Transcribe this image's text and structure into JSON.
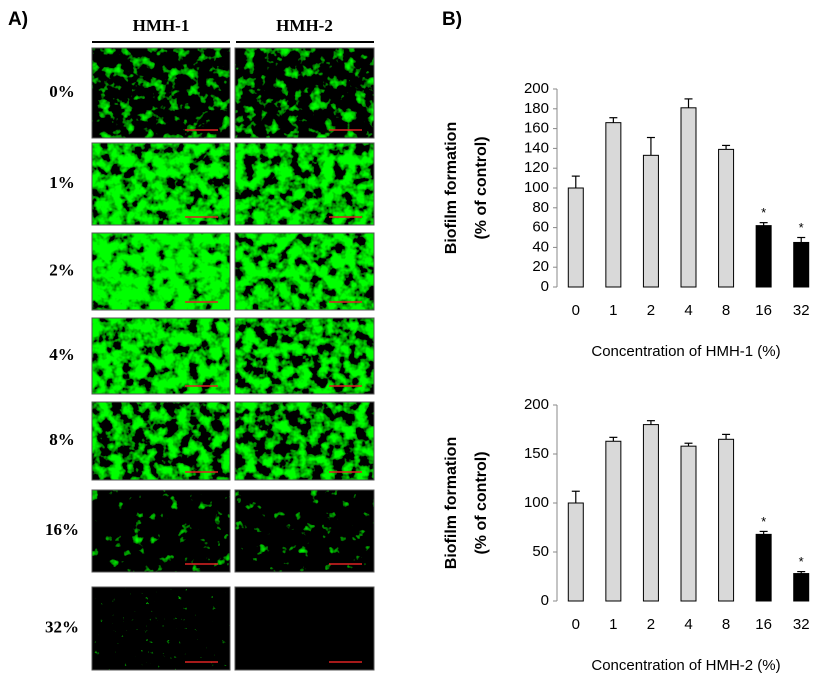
{
  "panel_a": {
    "label": "A)",
    "columns": [
      "HMH-1",
      "HMH-2"
    ],
    "rows": [
      "0%",
      "1%",
      "2%",
      "4%",
      "8%",
      "16%",
      "32%"
    ]
  },
  "panel_b": {
    "label": "B)"
  },
  "chart_data": [
    {
      "type": "bar",
      "ylabel": [
        "Biofilm formation",
        "(% of control)"
      ],
      "xlabel": "Concentration of HMH-1 (%)",
      "categories": [
        "0",
        "1",
        "2",
        "4",
        "8",
        "16",
        "32"
      ],
      "values": [
        100,
        166,
        133,
        181,
        139,
        62,
        45
      ],
      "errors": [
        12,
        5,
        18,
        9,
        4,
        3,
        5
      ],
      "colors": [
        "#d9d9d9",
        "#d9d9d9",
        "#d9d9d9",
        "#d9d9d9",
        "#d9d9d9",
        "#000000",
        "#000000"
      ],
      "significance": [
        null,
        null,
        null,
        null,
        null,
        "*",
        "*"
      ],
      "ylim": [
        0,
        200
      ],
      "yticks": [
        0,
        20,
        40,
        60,
        80,
        100,
        120,
        140,
        160,
        180,
        200
      ]
    },
    {
      "type": "bar",
      "ylabel": [
        "Biofilm formation",
        "(% of control)"
      ],
      "xlabel": "Concentration of HMH-2 (%)",
      "categories": [
        "0",
        "1",
        "2",
        "4",
        "8",
        "16",
        "32"
      ],
      "values": [
        100,
        163,
        180,
        158,
        165,
        68,
        28
      ],
      "errors": [
        12,
        4,
        4,
        3,
        5,
        3,
        2
      ],
      "colors": [
        "#d9d9d9",
        "#d9d9d9",
        "#d9d9d9",
        "#d9d9d9",
        "#d9d9d9",
        "#000000",
        "#000000"
      ],
      "significance": [
        null,
        null,
        null,
        null,
        null,
        "*",
        "*"
      ],
      "ylim": [
        0,
        200
      ],
      "yticks": [
        0,
        50,
        100,
        150,
        200
      ]
    }
  ]
}
